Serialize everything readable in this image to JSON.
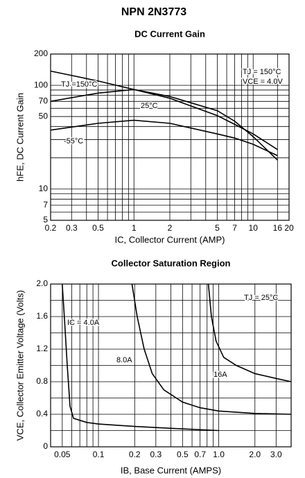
{
  "header": {
    "title": "NPN 2N3773"
  },
  "chart_data": [
    {
      "type": "line",
      "title": "DC Current Gain",
      "xlabel": "IC, Collector Current (AMP)",
      "ylabel": "hFE, DC Current Gain",
      "xlog": true,
      "ylog": true,
      "grid": true,
      "xlim": [
        0.2,
        20
      ],
      "ylim": [
        5,
        200
      ],
      "xticks": [
        0.2,
        0.3,
        0.5,
        1,
        2,
        5,
        7,
        10,
        16,
        20
      ],
      "yticks": [
        5,
        7,
        10,
        50,
        70,
        100,
        200
      ],
      "xminor": [
        0.4,
        0.6,
        0.7,
        0.8,
        0.9,
        3,
        4,
        6,
        8,
        9
      ],
      "yminor": [
        6,
        8,
        9,
        20,
        30,
        40,
        60,
        80,
        90
      ],
      "x": [
        0.2,
        0.5,
        1,
        2,
        5,
        7,
        10,
        16
      ],
      "series": [
        {
          "color": "#000000",
          "values": [
            137,
            110,
            91,
            75,
            51,
            42,
            34,
            24
          ]
        },
        {
          "color": "#000000",
          "values": [
            70,
            84,
            91,
            78,
            57,
            45,
            32,
            19
          ]
        },
        {
          "color": "#000000",
          "values": [
            37,
            43,
            46,
            43,
            34,
            31,
            27,
            21
          ]
        }
      ],
      "annotations": [
        "TJ =150°C",
        "25°C",
        "-55°C",
        "TJ = 150°C",
        "VCE = 4.0V"
      ]
    },
    {
      "type": "line",
      "title": "Collector Saturation Region",
      "xlabel": "IB, Base Current (AMPS)",
      "ylabel": "VCE, Collector Emitter Voltage (Volts)",
      "xlog": true,
      "ylog": false,
      "grid": true,
      "xlim": [
        0.04,
        4
      ],
      "ylim": [
        0,
        2
      ],
      "xticks": [
        0.05,
        0.1,
        0.2,
        0.3,
        0.5,
        0.7,
        {
          "value": 1,
          "label": "1.0"
        },
        {
          "value": 2,
          "label": "2.0"
        },
        {
          "value": 3,
          "label": "3.0"
        }
      ],
      "yticks": [
        0,
        0.4,
        0.8,
        1.2,
        1.6,
        {
          "value": 2,
          "label": "2.0"
        }
      ],
      "xminor": [
        0.06,
        0.07,
        0.08,
        0.09,
        0.4,
        0.6,
        0.8,
        0.9
      ],
      "yminor": [
        0.2,
        0.6,
        1,
        1.4,
        1.8
      ],
      "series": [
        {
          "color": "#000000",
          "x": [
            0.05,
            0.052,
            0.055,
            0.058,
            0.062,
            0.08,
            0.1,
            0.2,
            0.5,
            1
          ],
          "values": [
            2,
            1.6,
            1,
            0.5,
            0.35,
            0.3,
            0.28,
            0.25,
            0.22,
            0.2
          ]
        },
        {
          "color": "#000000",
          "x": [
            0.19,
            0.21,
            0.24,
            0.28,
            0.35,
            0.5,
            0.7,
            1,
            2,
            4
          ],
          "values": [
            2,
            1.6,
            1.2,
            0.9,
            0.7,
            0.55,
            0.48,
            0.44,
            0.41,
            0.4
          ]
        },
        {
          "color": "#000000",
          "x": [
            0.82,
            0.87,
            0.95,
            1.1,
            1.4,
            2,
            3,
            4
          ],
          "values": [
            2,
            1.6,
            1.3,
            1.1,
            1,
            0.9,
            0.84,
            0.8
          ]
        }
      ],
      "annotations": [
        "TJ = 25°C",
        "IC = 4.0A",
        "8.0A",
        "16A"
      ]
    }
  ]
}
